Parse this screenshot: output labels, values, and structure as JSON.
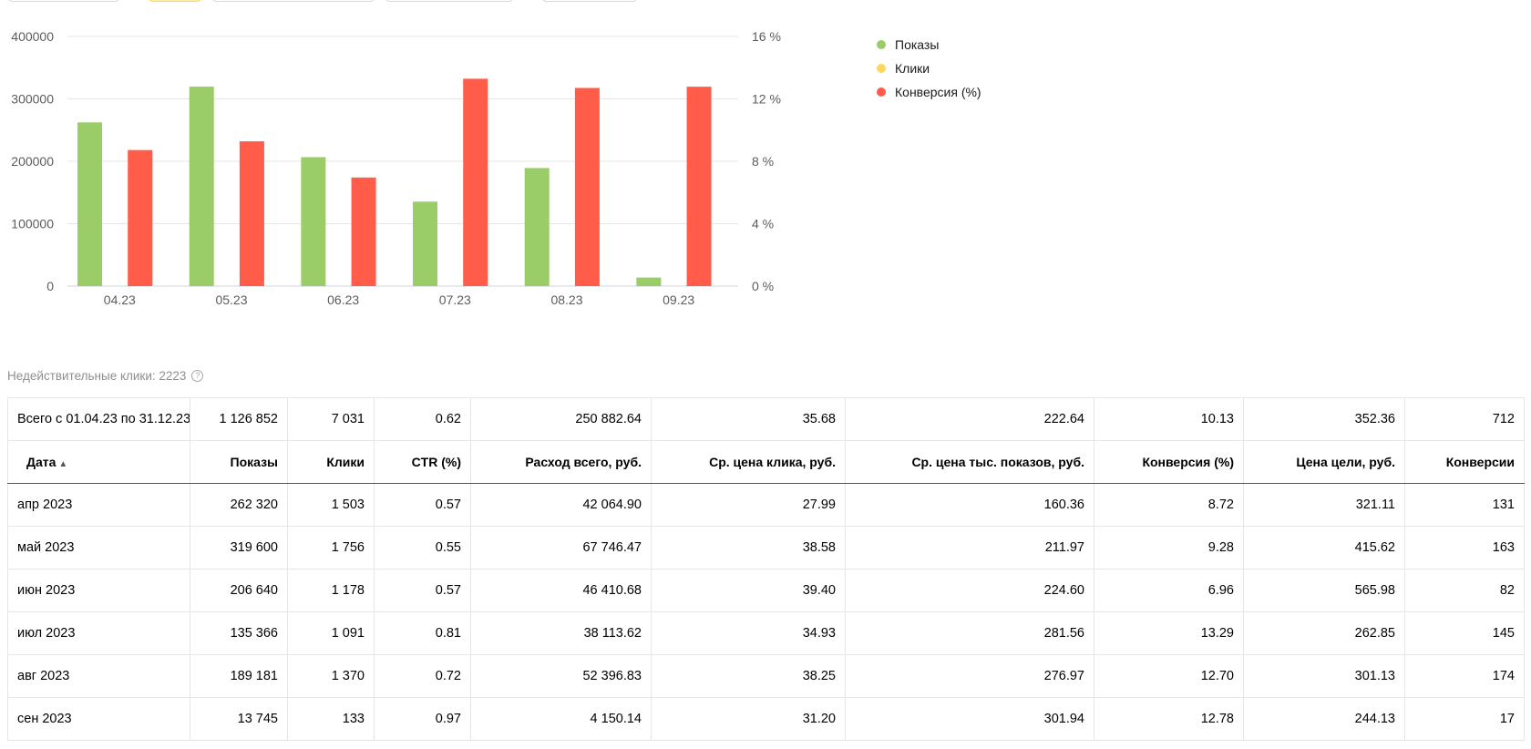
{
  "chart_data": {
    "type": "bar",
    "categories": [
      "04.23",
      "05.23",
      "06.23",
      "07.23",
      "08.23",
      "09.23"
    ],
    "series": [
      {
        "name": "Показы",
        "axis": "left",
        "color": "#9acc68",
        "values": [
          262320,
          319600,
          206640,
          135366,
          189181,
          13745
        ]
      },
      {
        "name": "Клики",
        "axis": "left",
        "color": "#ffd75e",
        "values": [
          1503,
          1756,
          1178,
          1091,
          1370,
          133
        ]
      },
      {
        "name": "Конверсия (%)",
        "axis": "right",
        "color": "#ff5c49",
        "values": [
          8.72,
          9.28,
          6.96,
          13.29,
          12.7,
          12.78
        ]
      }
    ],
    "ylim_left": [
      0,
      400000
    ],
    "yticks_left": [
      "0",
      "100000",
      "200000",
      "300000",
      "400000"
    ],
    "ylim_right": [
      0,
      16
    ],
    "yticks_right": [
      "0 %",
      "4 %",
      "8 %",
      "12 %",
      "16 %"
    ],
    "grid": true,
    "legend_position": "right"
  },
  "legend": [
    {
      "label": "Показы",
      "color": "#9acc68"
    },
    {
      "label": "Клики",
      "color": "#ffd75e"
    },
    {
      "label": "Конверсия (%)",
      "color": "#ff5c49"
    }
  ],
  "invalid_clicks": {
    "label": "Недействительные клики: 2223",
    "help_icon": "?"
  },
  "table": {
    "total_row": [
      "Всего с 01.04.23 по 31.12.23",
      "1 126 852",
      "7 031",
      "0.62",
      "250 882.64",
      "35.68",
      "222.64",
      "10.13",
      "352.36",
      "712"
    ],
    "headers": [
      "Дата",
      "Показы",
      "Клики",
      "CTR (%)",
      "Расход всего, руб.",
      "Ср. цена клика, руб.",
      "Ср. цена тыс. показов, руб.",
      "Конверсия (%)",
      "Цена цели, руб.",
      "Конверсии"
    ],
    "sort_icon": "▲",
    "rows": [
      [
        "апр 2023",
        "262 320",
        "1 503",
        "0.57",
        "42 064.90",
        "27.99",
        "160.36",
        "8.72",
        "321.11",
        "131"
      ],
      [
        "май 2023",
        "319 600",
        "1 756",
        "0.55",
        "67 746.47",
        "38.58",
        "211.97",
        "9.28",
        "415.62",
        "163"
      ],
      [
        "июн 2023",
        "206 640",
        "1 178",
        "0.57",
        "46 410.68",
        "39.40",
        "224.60",
        "6.96",
        "565.98",
        "82"
      ],
      [
        "июл 2023",
        "135 366",
        "1 091",
        "0.81",
        "38 113.62",
        "34.93",
        "281.56",
        "13.29",
        "262.85",
        "145"
      ],
      [
        "авг 2023",
        "189 181",
        "1 370",
        "0.72",
        "52 396.83",
        "38.25",
        "276.97",
        "12.70",
        "301.13",
        "174"
      ],
      [
        "сен 2023",
        "13 745",
        "133",
        "0.97",
        "4 150.14",
        "31.20",
        "301.94",
        "12.78",
        "244.13",
        "17"
      ]
    ]
  }
}
